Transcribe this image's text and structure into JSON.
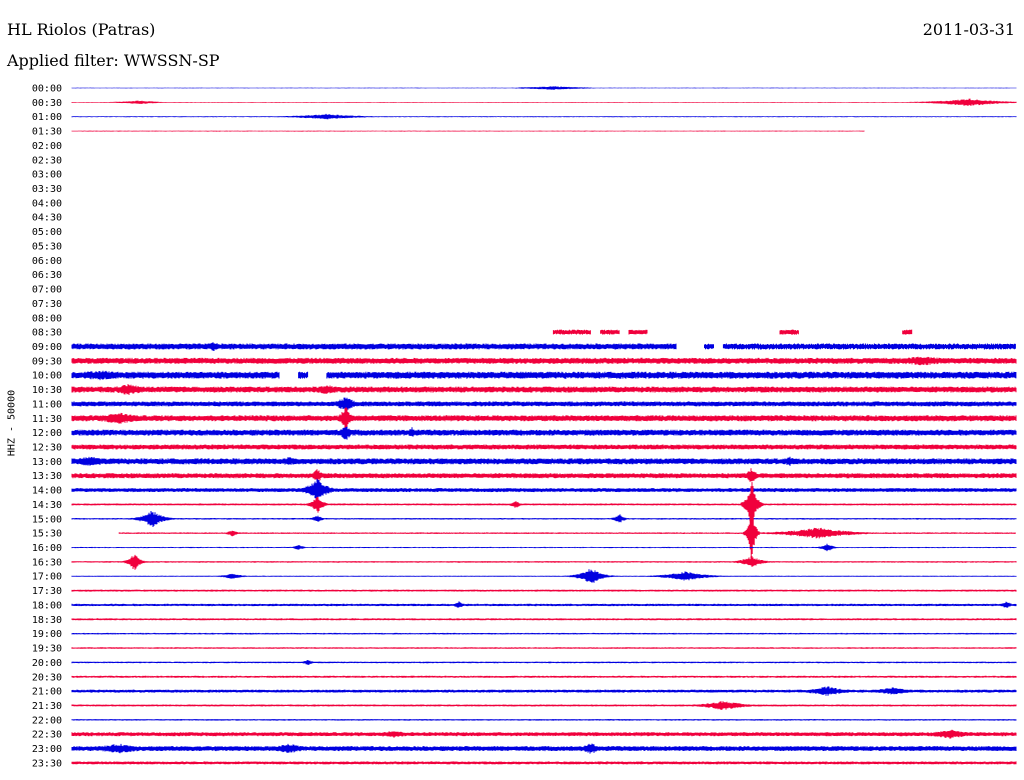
{
  "header": {
    "station": "HL Riolos (Patras)",
    "date": "2011-03-31",
    "filter": "Applied filter: WWSSN-SP"
  },
  "colors": {
    "odd_row": "#0000e0",
    "even_row": "#f0003c"
  },
  "chart_data": {
    "type": "line",
    "title": "HL Riolos (Patras)",
    "ylabel": "HHZ - 50000",
    "row_minutes": 30,
    "row_labels": [
      "00:00",
      "00:30",
      "01:00",
      "01:30",
      "02:00",
      "02:30",
      "03:00",
      "03:30",
      "04:00",
      "04:30",
      "05:00",
      "05:30",
      "06:00",
      "06:30",
      "07:00",
      "07:30",
      "08:00",
      "08:30",
      "09:00",
      "09:30",
      "10:00",
      "10:30",
      "11:00",
      "11:30",
      "12:00",
      "12:30",
      "13:00",
      "13:30",
      "14:00",
      "14:30",
      "15:00",
      "15:30",
      "16:00",
      "16:30",
      "17:00",
      "17:30",
      "18:00",
      "18:30",
      "19:00",
      "19:30",
      "20:00",
      "20:30",
      "21:00",
      "21:30",
      "22:00",
      "22:30",
      "23:00",
      "23:30"
    ],
    "rows": [
      {
        "start": 0,
        "end": 1,
        "noise": 0.4,
        "events": [
          {
            "at": 0.51,
            "amp": 2,
            "w": 0.03
          }
        ]
      },
      {
        "start": 0,
        "end": 1,
        "noise": 0.4,
        "events": [
          {
            "at": 0.07,
            "amp": 2,
            "w": 0.02
          },
          {
            "at": 0.95,
            "amp": 4,
            "w": 0.03
          }
        ]
      },
      {
        "start": 0,
        "end": 1,
        "noise": 0.5,
        "events": [
          {
            "at": 0.27,
            "amp": 3,
            "w": 0.03
          }
        ]
      },
      {
        "start": 0,
        "end": 0.84,
        "noise": 0.5,
        "events": []
      },
      null,
      null,
      null,
      null,
      null,
      null,
      null,
      null,
      null,
      null,
      null,
      null,
      null,
      {
        "segments": [
          [
            0.51,
            0.55
          ],
          [
            0.56,
            0.57
          ],
          [
            0.57,
            0.58
          ],
          [
            0.59,
            0.61
          ],
          [
            0.75,
            0.76
          ],
          [
            0.76,
            0.77
          ],
          [
            0.88,
            0.89
          ]
        ],
        "noise": 2.5,
        "events": []
      },
      {
        "segments": [
          [
            0,
            0.64
          ],
          [
            0.67,
            0.68
          ],
          [
            0.69,
            1
          ]
        ],
        "noise": 3,
        "events": [
          {
            "at": 0.15,
            "amp": 5,
            "w": 0.01
          }
        ]
      },
      {
        "start": 0,
        "end": 1,
        "noise": 3,
        "events": [
          {
            "at": 0.9,
            "amp": 5,
            "w": 0.04
          }
        ]
      },
      {
        "segments": [
          [
            0,
            0.22
          ],
          [
            0.24,
            0.25
          ],
          [
            0.27,
            1
          ]
        ],
        "noise": 3.5,
        "events": [
          {
            "at": 0.03,
            "amp": 5,
            "w": 0.05
          }
        ]
      },
      {
        "start": 0,
        "end": 1,
        "noise": 3,
        "events": [
          {
            "at": 0.06,
            "amp": 6,
            "w": 0.02
          },
          {
            "at": 0.27,
            "amp": 5,
            "w": 0.02
          }
        ]
      },
      {
        "start": 0,
        "end": 1,
        "noise": 2.5,
        "events": [
          {
            "at": 0.29,
            "amp": 8,
            "w": 0.01
          }
        ]
      },
      {
        "start": 0,
        "end": 1,
        "noise": 3,
        "events": [
          {
            "at": 0.05,
            "amp": 6,
            "w": 0.03
          },
          {
            "at": 0.29,
            "amp": 14,
            "w": 0.005
          }
        ]
      },
      {
        "start": 0,
        "end": 1,
        "noise": 3,
        "events": [
          {
            "at": 0.29,
            "amp": 10,
            "w": 0.005
          },
          {
            "at": 0.36,
            "amp": 6,
            "w": 0.005
          }
        ]
      },
      {
        "start": 0,
        "end": 1,
        "noise": 2.5,
        "events": []
      },
      {
        "start": 0,
        "end": 1,
        "noise": 3,
        "events": [
          {
            "at": 0.02,
            "amp": 5,
            "w": 0.03
          },
          {
            "at": 0.23,
            "amp": 5,
            "w": 0.01
          },
          {
            "at": 0.76,
            "amp": 5,
            "w": 0.01
          }
        ]
      },
      {
        "start": 0,
        "end": 1,
        "noise": 2.5,
        "events": [
          {
            "at": 0.26,
            "amp": 8,
            "w": 0.005
          },
          {
            "at": 0.72,
            "amp": 9,
            "w": 0.005
          }
        ]
      },
      {
        "start": 0,
        "end": 1,
        "noise": 2,
        "events": [
          {
            "at": 0.26,
            "amp": 12,
            "w": 0.01
          }
        ]
      },
      {
        "start": 0,
        "end": 1,
        "noise": 1,
        "events": [
          {
            "at": 0.26,
            "amp": 10,
            "w": 0.005
          },
          {
            "at": 0.47,
            "amp": 4,
            "w": 0.005
          },
          {
            "at": 0.72,
            "amp": 30,
            "w": 0.004
          }
        ]
      },
      {
        "start": 0,
        "end": 1,
        "noise": 0.8,
        "events": [
          {
            "at": 0.085,
            "amp": 9,
            "w": 0.01
          },
          {
            "at": 0.26,
            "amp": 4,
            "w": 0.005
          },
          {
            "at": 0.58,
            "amp": 5,
            "w": 0.005
          }
        ]
      },
      {
        "start": 0.05,
        "end": 1,
        "noise": 0.8,
        "events": [
          {
            "at": 0.17,
            "amp": 4,
            "w": 0.005
          },
          {
            "at": 0.72,
            "amp": 30,
            "w": 0.003
          },
          {
            "at": 0.79,
            "amp": 6,
            "w": 0.03
          }
        ]
      },
      {
        "start": 0,
        "end": 1,
        "noise": 0.6,
        "events": [
          {
            "at": 0.24,
            "amp": 3,
            "w": 0.005
          },
          {
            "at": 0.8,
            "amp": 5,
            "w": 0.005
          }
        ]
      },
      {
        "start": 0,
        "end": 1,
        "noise": 0.8,
        "events": [
          {
            "at": 0.066,
            "amp": 10,
            "w": 0.005
          },
          {
            "at": 0.72,
            "amp": 6,
            "w": 0.01
          }
        ]
      },
      {
        "start": 0,
        "end": 1,
        "noise": 0.6,
        "events": [
          {
            "at": 0.17,
            "amp": 3,
            "w": 0.01
          },
          {
            "at": 0.55,
            "amp": 9,
            "w": 0.01
          },
          {
            "at": 0.65,
            "amp": 5,
            "w": 0.02
          }
        ]
      },
      {
        "start": 0,
        "end": 1,
        "noise": 1,
        "events": []
      },
      {
        "start": 0,
        "end": 1,
        "noise": 1.2,
        "events": [
          {
            "at": 0.41,
            "amp": 4,
            "w": 0.005
          },
          {
            "at": 0.99,
            "amp": 4,
            "w": 0.005
          }
        ]
      },
      {
        "start": 0,
        "end": 1,
        "noise": 1,
        "events": []
      },
      {
        "start": 0,
        "end": 1,
        "noise": 0.8,
        "events": []
      },
      {
        "start": 0,
        "end": 1,
        "noise": 0.8,
        "events": []
      },
      {
        "start": 0,
        "end": 1,
        "noise": 0.8,
        "events": [
          {
            "at": 0.25,
            "amp": 3,
            "w": 0.005
          }
        ]
      },
      {
        "start": 0,
        "end": 1,
        "noise": 1,
        "events": []
      },
      {
        "start": 0,
        "end": 1,
        "noise": 1.5,
        "events": [
          {
            "at": 0.8,
            "amp": 5,
            "w": 0.02
          },
          {
            "at": 0.87,
            "amp": 4,
            "w": 0.02
          }
        ]
      },
      {
        "start": 0,
        "end": 1,
        "noise": 1,
        "events": [
          {
            "at": 0.69,
            "amp": 5,
            "w": 0.02
          }
        ]
      },
      {
        "start": 0,
        "end": 1,
        "noise": 0.8,
        "events": []
      },
      {
        "start": 0,
        "end": 1,
        "noise": 2,
        "events": [
          {
            "at": 0.34,
            "amp": 4,
            "w": 0.02
          },
          {
            "at": 0.93,
            "amp": 5,
            "w": 0.02
          }
        ]
      },
      {
        "start": 0,
        "end": 1,
        "noise": 2.5,
        "events": [
          {
            "at": 0.05,
            "amp": 5,
            "w": 0.03
          },
          {
            "at": 0.23,
            "amp": 5,
            "w": 0.02
          },
          {
            "at": 0.55,
            "amp": 6,
            "w": 0.01
          }
        ]
      },
      {
        "start": 0,
        "end": 1,
        "noise": 1.5,
        "events": []
      }
    ]
  }
}
